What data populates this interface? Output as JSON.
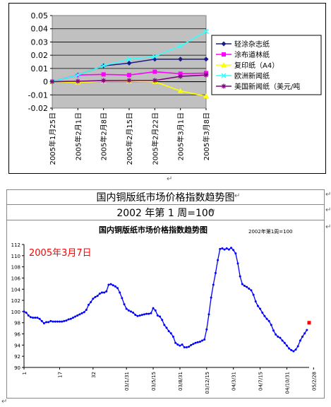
{
  "chart1": {
    "chart_data": {
      "type": "line",
      "categories": [
        "2005年1月25日",
        "2005年2月1日",
        "2005年2月8日",
        "2005年2月15日",
        "2005年2月22日",
        "2005年3月1日",
        "2005年3月8日"
      ],
      "ylim": [
        -0.02,
        0.05
      ],
      "yticks": [
        "0.05",
        "0.04",
        "0.03",
        "0.02",
        "0.01",
        "0",
        "-0.01",
        "-0.02"
      ],
      "grid": true,
      "legend": "right",
      "series": [
        {
          "name": "轻涂杂志纸",
          "color": "#1a1a8c",
          "marker": "diamond",
          "values": [
            0,
            0.005,
            0.012,
            0.014,
            0.017,
            0.017,
            0.017
          ]
        },
        {
          "name": "涂布道林纸",
          "color": "#ff00ff",
          "marker": "square",
          "values": [
            0,
            0.005,
            0.0055,
            0.005,
            0.0075,
            0.006,
            0.0065
          ]
        },
        {
          "name": "复印纸（A4）",
          "color": "#ffff00",
          "marker": "triangle",
          "values": [
            0,
            -0.0005,
            0.0003,
            0.0003,
            0,
            -0.007,
            -0.011
          ]
        },
        {
          "name": "欧洲新闻纸",
          "color": "#33ffff",
          "marker": "x",
          "values": [
            0,
            0.005,
            0.012,
            0.017,
            0.019,
            0.027,
            0.038
          ]
        },
        {
          "name": "美国新闻纸（美元/吨",
          "color": "#800080",
          "marker": "star",
          "values": [
            0,
            0.0003,
            0.0008,
            0.0009,
            0.0009,
            0.004,
            0.005
          ]
        }
      ]
    }
  },
  "table": {
    "title": "国内铜版纸市场价格指数趋势图",
    "subtitle": "2002 年第 1 周=100"
  },
  "chart2": {
    "chart_data": {
      "type": "line",
      "title": "国内铜版纸市场价格指数趋势图",
      "note": "2002年第1周=100",
      "annotation": "2005年3月7日",
      "ylim": [
        90,
        112
      ],
      "yticks": [
        "112",
        "110",
        "108",
        "106",
        "104",
        "102",
        "100",
        "98",
        "96",
        "94",
        "92",
        "90"
      ],
      "xtick_labels": [
        "1",
        "17",
        "32",
        "03/1/31",
        "03/5/15",
        "03/8/31",
        "03/12/15",
        "04/3/31",
        "04/7/15",
        "04/10/31",
        "05/2/28"
      ],
      "xtick_index": [
        0,
        16,
        31,
        46,
        58,
        70,
        82,
        94,
        106,
        118,
        130
      ],
      "values": [
        100,
        99.8,
        99.3,
        99,
        98.9,
        98.9,
        98.9,
        98.7,
        98.3,
        97.9,
        98.1,
        98.1,
        98.3,
        98.2,
        98.2,
        98.2,
        98.2,
        98.2,
        98.3,
        98.4,
        98.6,
        98.7,
        98.9,
        99.1,
        99.3,
        99.5,
        99.7,
        99.9,
        100.3,
        101.2,
        101.7,
        102.3,
        102.6,
        102.8,
        103.2,
        103.4,
        103.4,
        103.6,
        104.8,
        104.9,
        104.7,
        104.5,
        104.2,
        103.4,
        102.4,
        101.3,
        100.5,
        100.2,
        100,
        99.8,
        99.4,
        99.2,
        99.3,
        99.4,
        99.5,
        99.6,
        99.6,
        99.7,
        100.6,
        100.2,
        99.3,
        99.1,
        98.5,
        97.6,
        97.1,
        96.5,
        96.1,
        95.5,
        94.4,
        94.1,
        93.9,
        94.1,
        93.6,
        93.6,
        93.7,
        94,
        94.2,
        94.4,
        94.5,
        94.6,
        94.8,
        95,
        96.8,
        99.5,
        102.5,
        104.8,
        106.9,
        109.2,
        111.2,
        111.3,
        111.1,
        111.3,
        111.1,
        111.4,
        111,
        110.4,
        108.6,
        106.3,
        104.9,
        104.6,
        104.4,
        104.1,
        103.8,
        103,
        101.8,
        101,
        100.5,
        99.8,
        99.2,
        98.7,
        98.3,
        97.6,
        96.6,
        95.9,
        95.5,
        95.3,
        94.8,
        94.4,
        93.9,
        93.4,
        93.1,
        92.9,
        93.2,
        93.8,
        94.8,
        95.5,
        96.1,
        96.7
      ],
      "last_point": 98
    }
  },
  "marks": {
    "return": "↵"
  }
}
